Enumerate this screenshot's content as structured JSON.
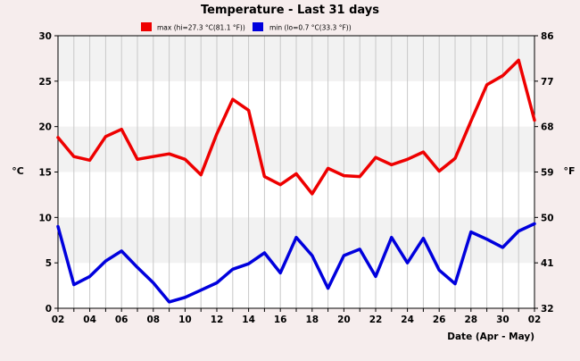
{
  "chart_data": {
    "type": "line",
    "title": "Temperature - Last 31 days",
    "xlabel": "Date (Apr - May)",
    "ylabel_left": "°C",
    "ylabel_right": "°F",
    "x": [
      "02",
      "03",
      "04",
      "05",
      "06",
      "07",
      "08",
      "09",
      "10",
      "11",
      "12",
      "13",
      "14",
      "15",
      "16",
      "17",
      "18",
      "19",
      "20",
      "21",
      "22",
      "23",
      "24",
      "25",
      "26",
      "27",
      "28",
      "29",
      "30",
      "01",
      "02"
    ],
    "x_tick_labels": [
      "02",
      "",
      "04",
      "",
      "06",
      "",
      "08",
      "",
      "10",
      "",
      "12",
      "",
      "14",
      "",
      "16",
      "",
      "18",
      "",
      "20",
      "",
      "22",
      "",
      "24",
      "",
      "26",
      "",
      "28",
      "",
      "30",
      "",
      "02"
    ],
    "ylim": [
      0,
      30
    ],
    "y_ticks": [
      0,
      5,
      10,
      15,
      20,
      25,
      30
    ],
    "y2_ticks": [
      32,
      41,
      50,
      59,
      68,
      77,
      86
    ],
    "grid": true,
    "legend_position": "top",
    "series": [
      {
        "name": "max (hi=27.3 °C(81.1 °F))",
        "color": "#ee0000",
        "values": [
          18.8,
          16.7,
          16.3,
          18.9,
          19.7,
          16.4,
          16.7,
          17.0,
          16.4,
          14.7,
          19.2,
          23.0,
          21.8,
          14.5,
          13.6,
          14.8,
          12.6,
          15.4,
          14.6,
          14.5,
          16.6,
          15.8,
          16.4,
          17.2,
          15.1,
          16.5,
          20.6,
          24.6,
          25.6,
          27.3,
          20.7
        ]
      },
      {
        "name": "min (lo=0.7 °C(33.3 °F))",
        "color": "#0000dd",
        "values": [
          9.0,
          2.6,
          3.5,
          5.2,
          6.3,
          4.5,
          2.8,
          0.7,
          1.2,
          2.0,
          2.8,
          4.3,
          4.9,
          6.1,
          3.9,
          7.8,
          5.8,
          2.2,
          5.8,
          6.5,
          3.5,
          7.8,
          5.0,
          7.7,
          4.2,
          2.7,
          8.4,
          7.6,
          6.7,
          8.5,
          9.3
        ]
      }
    ]
  }
}
